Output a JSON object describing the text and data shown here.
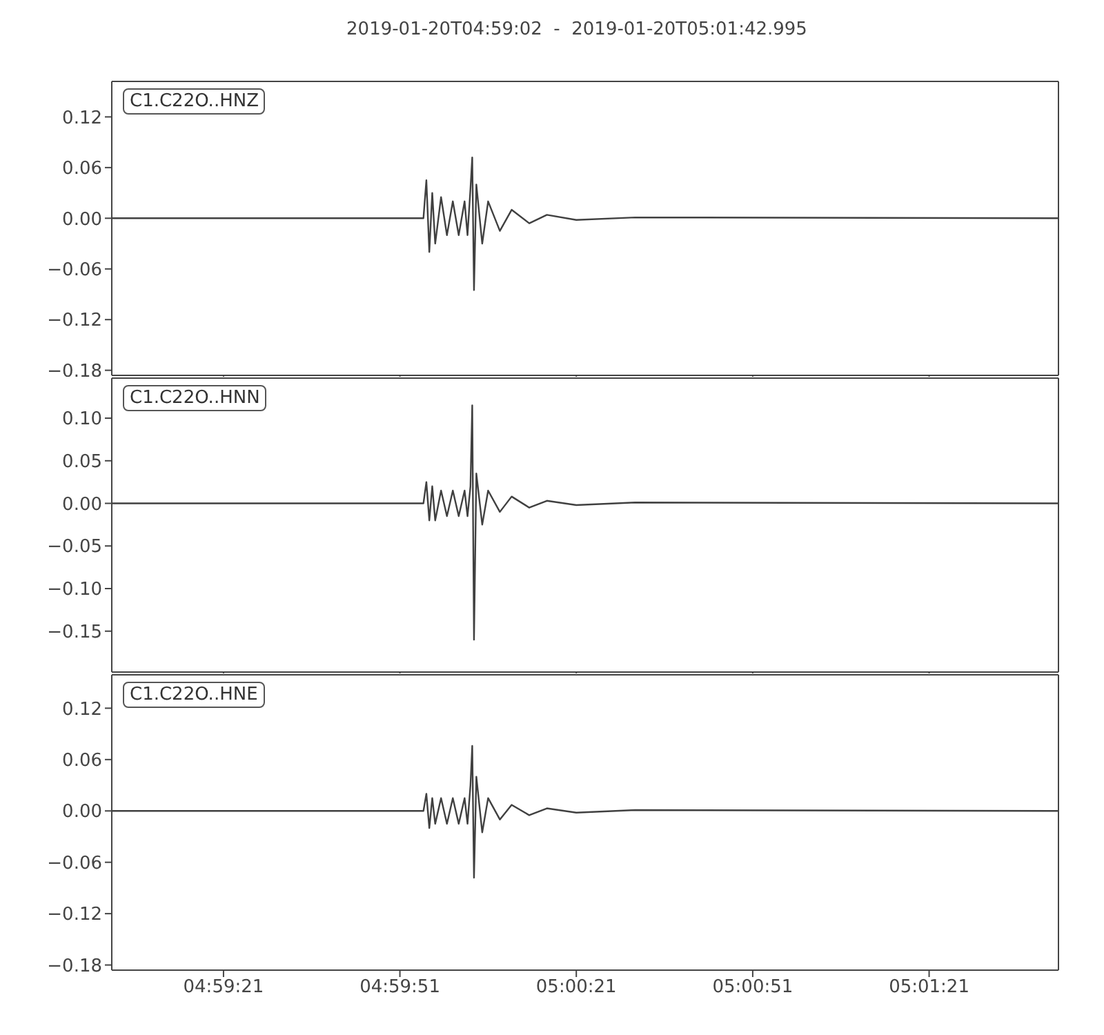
{
  "chart_data": [
    {
      "type": "line",
      "title": "2019-01-20T04:59:02  -  2019-01-20T05:01:42.995",
      "x": [
        4.983889,
        4.998611,
        4.99875,
        4.998889,
        4.999028,
        4.999167,
        4.999444,
        4.999722,
        5.0,
        5.000278,
        5.000556,
        5.000694,
        5.000833,
        5.000917,
        5.001,
        5.001111,
        5.001389,
        5.001667,
        5.002222,
        5.002778,
        5.003611,
        5.004444,
        5.005833,
        5.008611,
        5.02861
      ],
      "series": [
        {
          "name": "C1.C22O..HNZ",
          "color": "#404040",
          "values": [
            0,
            0,
            0.045,
            -0.04,
            0.03,
            -0.03,
            0.025,
            -0.02,
            0.02,
            -0.02,
            0.02,
            -0.02,
            0.035,
            0.072,
            -0.085,
            0.04,
            -0.03,
            0.02,
            -0.015,
            0.01,
            -0.006,
            0.004,
            -0.002,
            0.001,
            0
          ]
        }
      ],
      "xlim": [
        4.983889,
        5.02861
      ],
      "xticks": [
        {
          "value": 4.989167,
          "label": null
        },
        {
          "value": 4.9975,
          "label": null
        },
        {
          "value": 5.005833,
          "label": null
        },
        {
          "value": 5.014167,
          "label": null
        },
        {
          "value": 5.0225,
          "label": null
        }
      ],
      "ylim": [
        -0.186,
        0.162
      ],
      "yticks": [
        {
          "value": -0.18,
          "label": "−0.18"
        },
        {
          "value": -0.12,
          "label": "−0.12"
        },
        {
          "value": -0.06,
          "label": "−0.06"
        },
        {
          "value": 0,
          "label": "0.00"
        },
        {
          "value": 0.06,
          "label": "0.06"
        },
        {
          "value": 0.12,
          "label": "0.12"
        }
      ],
      "tick_labels": "y",
      "legend": "top left",
      "grid": false,
      "marker": "none",
      "line_style": "solid"
    },
    {
      "type": "line",
      "x": [
        4.983889,
        4.998611,
        4.99875,
        4.998889,
        4.999028,
        4.999167,
        4.999444,
        4.999722,
        5.0,
        5.000278,
        5.000556,
        5.000694,
        5.000833,
        5.000917,
        5.001,
        5.001111,
        5.001389,
        5.001667,
        5.002222,
        5.002778,
        5.003611,
        5.004444,
        5.005833,
        5.008611,
        5.02861
      ],
      "series": [
        {
          "name": "C1.C22O..HNN",
          "color": "#404040",
          "values": [
            0,
            0,
            0.025,
            -0.02,
            0.02,
            -0.02,
            0.015,
            -0.015,
            0.015,
            -0.015,
            0.015,
            -0.015,
            0.02,
            0.115,
            -0.16,
            0.035,
            -0.025,
            0.015,
            -0.01,
            0.008,
            -0.005,
            0.003,
            -0.002,
            0.001,
            0
          ]
        }
      ],
      "xlim": [
        4.983889,
        5.02861
      ],
      "xticks": [
        {
          "value": 4.989167,
          "label": null
        },
        {
          "value": 4.9975,
          "label": null
        },
        {
          "value": 5.005833,
          "label": null
        },
        {
          "value": 5.014167,
          "label": null
        },
        {
          "value": 5.0225,
          "label": null
        }
      ],
      "ylim": [
        -0.198,
        0.147
      ],
      "yticks": [
        {
          "value": -0.15,
          "label": "−0.15"
        },
        {
          "value": -0.1,
          "label": "−0.10"
        },
        {
          "value": -0.05,
          "label": "−0.05"
        },
        {
          "value": 0,
          "label": "0.00"
        },
        {
          "value": 0.05,
          "label": "0.05"
        },
        {
          "value": 0.1,
          "label": "0.10"
        }
      ],
      "tick_labels": "y",
      "legend": "top left",
      "grid": false,
      "marker": "none",
      "line_style": "solid"
    },
    {
      "type": "line",
      "x": [
        4.983889,
        4.998611,
        4.99875,
        4.998889,
        4.999028,
        4.999167,
        4.999444,
        4.999722,
        5.0,
        5.000278,
        5.000556,
        5.000694,
        5.000833,
        5.000917,
        5.001,
        5.001111,
        5.001389,
        5.001667,
        5.002222,
        5.002778,
        5.003611,
        5.004444,
        5.005833,
        5.008611,
        5.02861
      ],
      "series": [
        {
          "name": "C1.C22O..HNE",
          "color": "#404040",
          "values": [
            0,
            0,
            0.02,
            -0.02,
            0.015,
            -0.015,
            0.015,
            -0.015,
            0.015,
            -0.015,
            0.015,
            -0.015,
            0.03,
            0.076,
            -0.078,
            0.04,
            -0.025,
            0.015,
            -0.01,
            0.007,
            -0.005,
            0.003,
            -0.002,
            0.001,
            0
          ]
        }
      ],
      "xlim": [
        4.983889,
        5.02861
      ],
      "xticks": [
        {
          "value": 4.989167,
          "label": "04:59:21"
        },
        {
          "value": 4.9975,
          "label": "04:59:51"
        },
        {
          "value": 5.005833,
          "label": "05:00:21"
        },
        {
          "value": 5.014167,
          "label": "05:00:51"
        },
        {
          "value": 5.0225,
          "label": "05:01:21"
        }
      ],
      "ylim": [
        -0.186,
        0.159
      ],
      "yticks": [
        {
          "value": -0.18,
          "label": "−0.18"
        },
        {
          "value": -0.12,
          "label": "−0.12"
        },
        {
          "value": -0.06,
          "label": "−0.06"
        },
        {
          "value": 0,
          "label": "0.00"
        },
        {
          "value": 0.06,
          "label": "0.06"
        },
        {
          "value": 0.12,
          "label": "0.12"
        }
      ],
      "legend": "top left",
      "grid": false,
      "marker": "none",
      "line_style": "solid"
    }
  ]
}
